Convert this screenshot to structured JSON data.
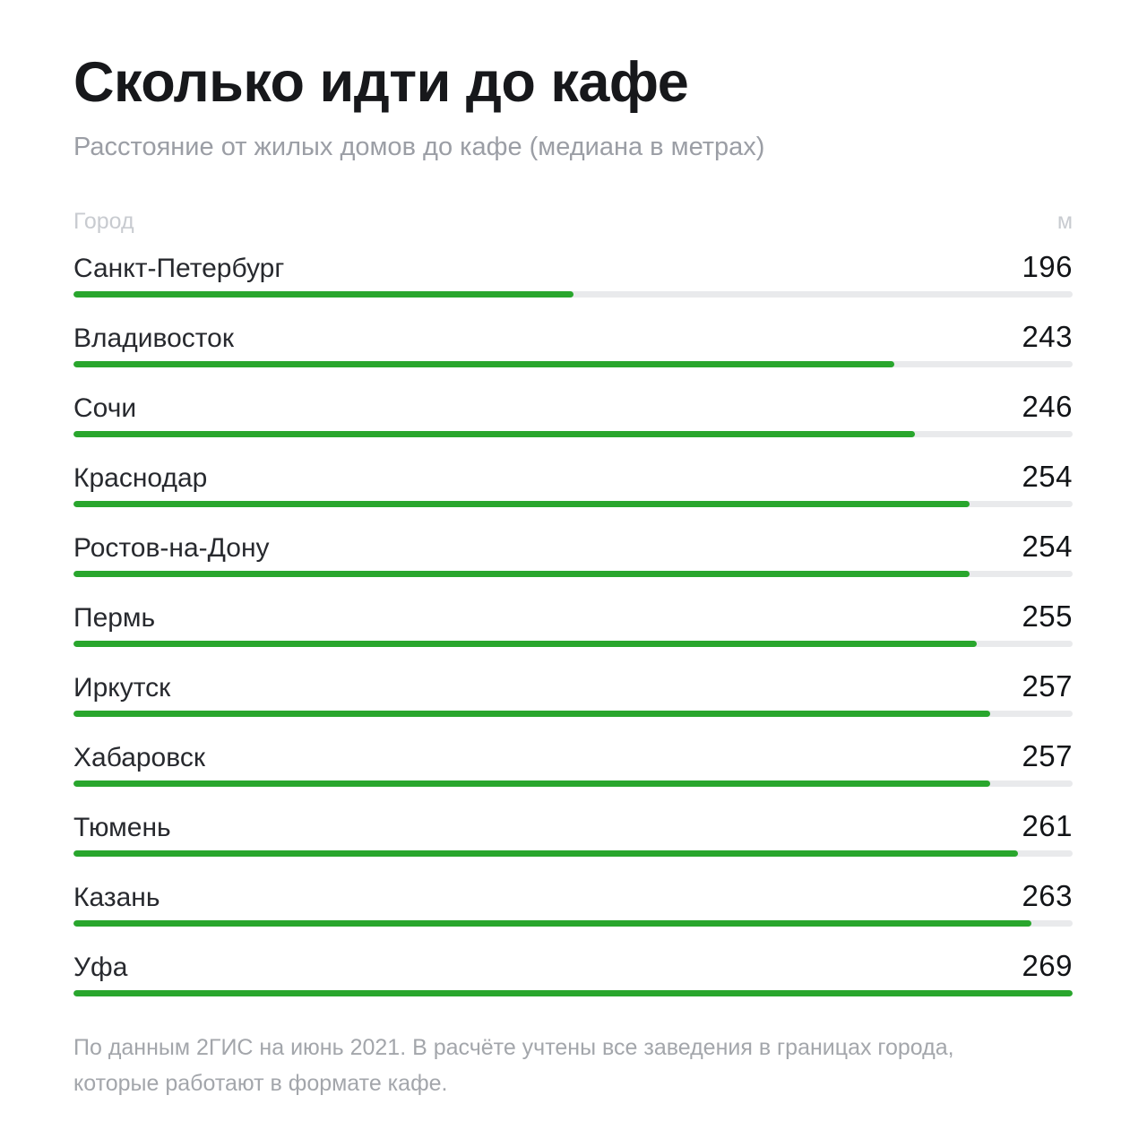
{
  "header": {
    "title": "Сколько идти до кафе",
    "subtitle": "Расстояние от жилых домов до кафе (медиана в метрах)"
  },
  "table": {
    "columns": {
      "city": "Город",
      "meters": "м"
    }
  },
  "footer": {
    "source_note": "По данным 2ГИС на июнь 2021. В расчёте учтены все заведения в границах города, которые работают в формате кафе."
  },
  "chart_data": {
    "type": "bar",
    "orientation": "horizontal",
    "title": "Сколько идти до кафе",
    "subtitle": "Расстояние от жилых домов до кафе (медиана в метрах)",
    "categories": [
      "Санкт-Петербург",
      "Владивосток",
      "Сочи",
      "Краснодар",
      "Ростов-на-Дону",
      "Пермь",
      "Иркутск",
      "Хабаровск",
      "Тюмень",
      "Казань",
      "Уфа"
    ],
    "values": [
      196,
      243,
      246,
      254,
      254,
      255,
      257,
      257,
      261,
      263,
      269
    ],
    "unit": "м",
    "xlabel": "Город",
    "ylabel": "м",
    "value_labels_position": "right",
    "grid": false,
    "legend": false,
    "source_note": "По данным 2ГИС на июнь 2021. В расчёте учтены все заведения в границах города, которые работают в формате кафе.",
    "colors": {
      "bar_fill": "#29a62d",
      "bar_track": "#e9eaec",
      "title_text": "#17181b",
      "subtitle_text": "#9b9ea5",
      "column_header_text": "#c8cbd0",
      "city_text": "#27292e",
      "value_text": "#121417",
      "note_text": "#a3a6ab",
      "background": "#ffffff"
    },
    "bar_scale": {
      "min_value": 196,
      "min_width_pct": 50,
      "max_value": 269,
      "max_width_pct": 100
    }
  }
}
